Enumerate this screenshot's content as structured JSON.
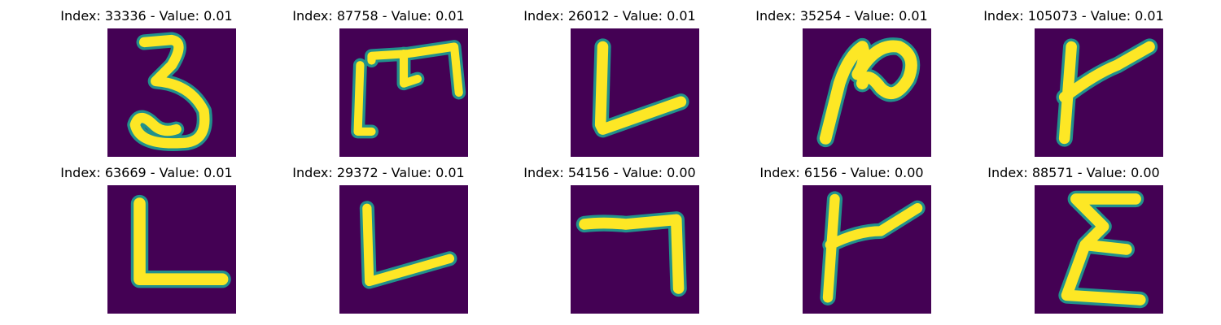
{
  "colors": {
    "background": "#440154",
    "glyph": "#fde725",
    "edge": "#21918c",
    "mid": "#5ec962"
  },
  "panels": [
    {
      "title": "Index: 33336 - Value: 0.01",
      "glyph": "digit-3"
    },
    {
      "title": "Index: 87758 - Value: 0.01",
      "glyph": "m-like"
    },
    {
      "title": "Index: 26012 - Value: 0.01",
      "glyph": "l-shape"
    },
    {
      "title": "Index: 35254 - Value: 0.01",
      "glyph": "n-loop"
    },
    {
      "title": "Index: 105073 - Value: 0.01",
      "glyph": "k-like"
    },
    {
      "title": "Index: 63669 - Value: 0.01",
      "glyph": "l-shape"
    },
    {
      "title": "Index: 29372 - Value: 0.01",
      "glyph": "l-shape"
    },
    {
      "title": "Index: 54156 - Value: 0.00",
      "glyph": "seven"
    },
    {
      "title": "Index: 6156 - Value: 0.00",
      "glyph": "k-like"
    },
    {
      "title": "Index: 88571 - Value: 0.00",
      "glyph": "e-like"
    }
  ]
}
